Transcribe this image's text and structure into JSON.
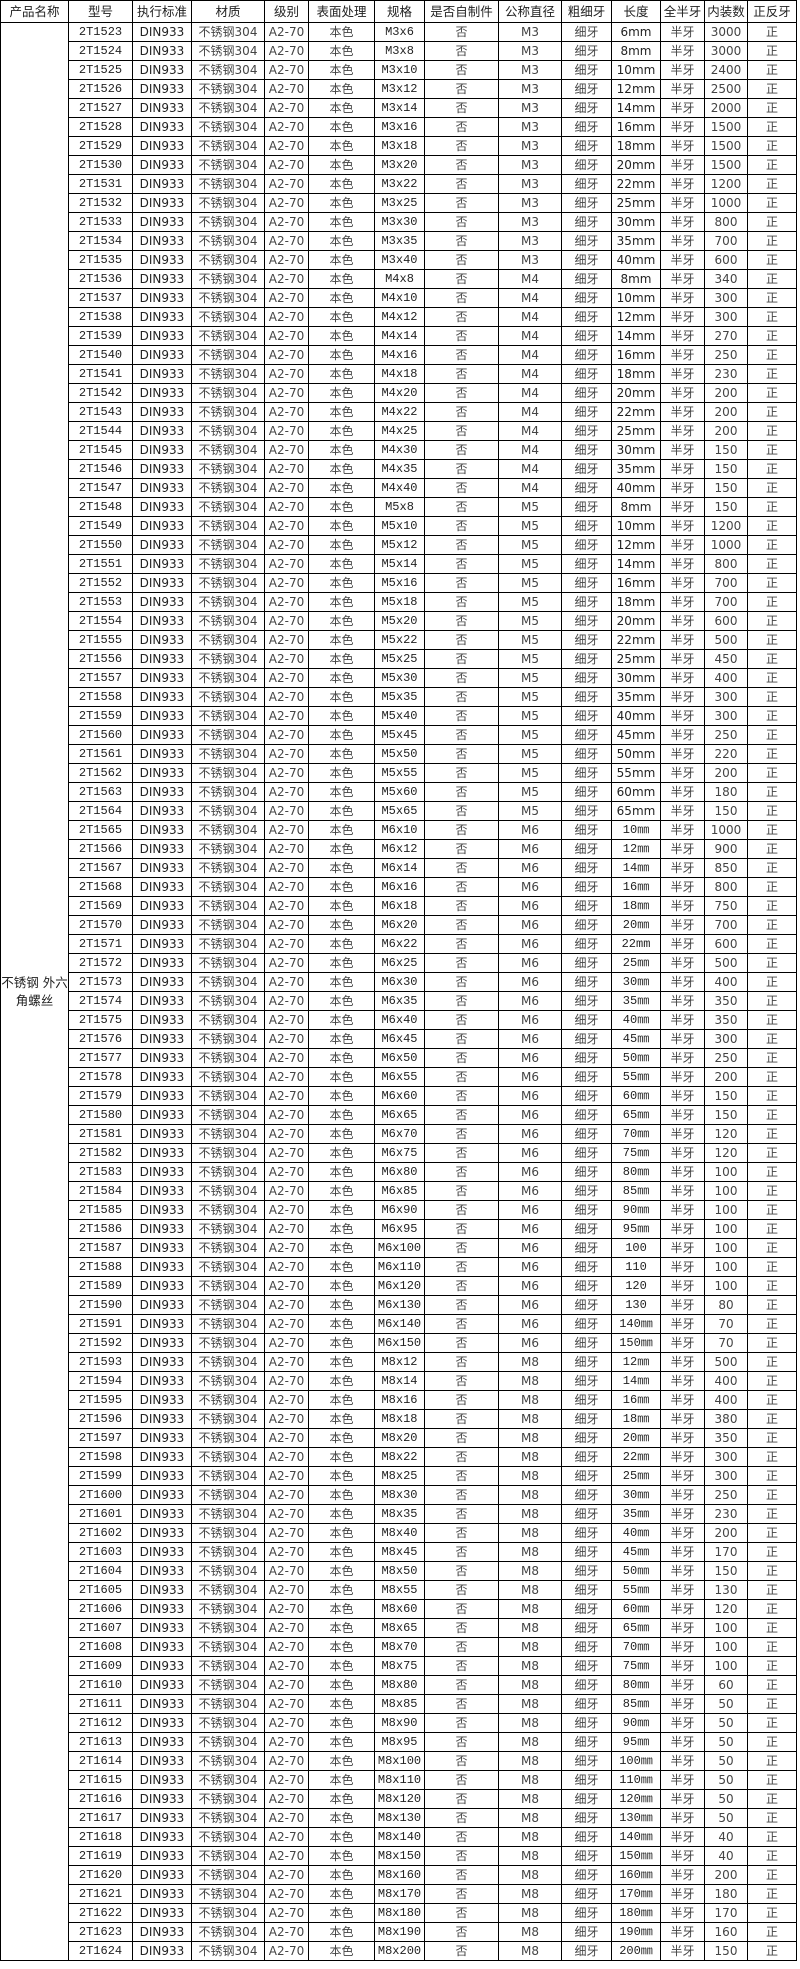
{
  "headers": [
    "产品名称",
    "型号",
    "执行标准",
    "材质",
    "级别",
    "表面处理",
    "规格",
    "是否自制件",
    "公称直径",
    "粗细牙",
    "长度",
    "全半牙",
    "内装数",
    "正反牙"
  ],
  "product_name": "不锈钢 外六角螺丝",
  "common": {
    "standard": "DIN933",
    "material": "不锈钢304",
    "grade": "A2-70",
    "surface": "本色",
    "self_made": "否",
    "thread": "细牙",
    "full_half": "半牙",
    "direction": "正"
  },
  "rows": [
    [
      "2T1523",
      "M3x6",
      "M3",
      "6mm",
      "3000"
    ],
    [
      "2T1524",
      "M3x8",
      "M3",
      "8mm",
      "3000"
    ],
    [
      "2T1525",
      "M3x10",
      "M3",
      "10mm",
      "2400"
    ],
    [
      "2T1526",
      "M3x12",
      "M3",
      "12mm",
      "2500"
    ],
    [
      "2T1527",
      "M3x14",
      "M3",
      "14mm",
      "2000"
    ],
    [
      "2T1528",
      "M3x16",
      "M3",
      "16mm",
      "1500"
    ],
    [
      "2T1529",
      "M3x18",
      "M3",
      "18mm",
      "1500"
    ],
    [
      "2T1530",
      "M3x20",
      "M3",
      "20mm",
      "1500"
    ],
    [
      "2T1531",
      "M3x22",
      "M3",
      "22mm",
      "1200"
    ],
    [
      "2T1532",
      "M3x25",
      "M3",
      "25mm",
      "1000"
    ],
    [
      "2T1533",
      "M3x30",
      "M3",
      "30mm",
      "800"
    ],
    [
      "2T1534",
      "M3x35",
      "M3",
      "35mm",
      "700"
    ],
    [
      "2T1535",
      "M3x40",
      "M3",
      "40mm",
      "600"
    ],
    [
      "2T1536",
      "M4x8",
      "M4",
      "8mm",
      "340"
    ],
    [
      "2T1537",
      "M4x10",
      "M4",
      "10mm",
      "300"
    ],
    [
      "2T1538",
      "M4x12",
      "M4",
      "12mm",
      "300"
    ],
    [
      "2T1539",
      "M4x14",
      "M4",
      "14mm",
      "270"
    ],
    [
      "2T1540",
      "M4x16",
      "M4",
      "16mm",
      "250"
    ],
    [
      "2T1541",
      "M4x18",
      "M4",
      "18mm",
      "230"
    ],
    [
      "2T1542",
      "M4x20",
      "M4",
      "20mm",
      "200"
    ],
    [
      "2T1543",
      "M4x22",
      "M4",
      "22mm",
      "200"
    ],
    [
      "2T1544",
      "M4x25",
      "M4",
      "25mm",
      "200"
    ],
    [
      "2T1545",
      "M4x30",
      "M4",
      "30mm",
      "150"
    ],
    [
      "2T1546",
      "M4x35",
      "M4",
      "35mm",
      "150"
    ],
    [
      "2T1547",
      "M4x40",
      "M4",
      "40mm",
      "150"
    ],
    [
      "2T1548",
      "M5x8",
      "M5",
      "8mm",
      "150"
    ],
    [
      "2T1549",
      "M5x10",
      "M5",
      "10mm",
      "1200"
    ],
    [
      "2T1550",
      "M5x12",
      "M5",
      "12mm",
      "1000"
    ],
    [
      "2T1551",
      "M5x14",
      "M5",
      "14mm",
      "800"
    ],
    [
      "2T1552",
      "M5x16",
      "M5",
      "16mm",
      "700"
    ],
    [
      "2T1553",
      "M5x18",
      "M5",
      "18mm",
      "700"
    ],
    [
      "2T1554",
      "M5x20",
      "M5",
      "20mm",
      "600"
    ],
    [
      "2T1555",
      "M5x22",
      "M5",
      "22mm",
      "500"
    ],
    [
      "2T1556",
      "M5x25",
      "M5",
      "25mm",
      "450"
    ],
    [
      "2T1557",
      "M5x30",
      "M5",
      "30mm",
      "400"
    ],
    [
      "2T1558",
      "M5x35",
      "M5",
      "35mm",
      "300"
    ],
    [
      "2T1559",
      "M5x40",
      "M5",
      "40mm",
      "300"
    ],
    [
      "2T1560",
      "M5x45",
      "M5",
      "45mm",
      "250"
    ],
    [
      "2T1561",
      "M5x50",
      "M5",
      "50mm",
      "220"
    ],
    [
      "2T1562",
      "M5x55",
      "M5",
      "55mm",
      "200"
    ],
    [
      "2T1563",
      "M5x60",
      "M5",
      "60mm",
      "180"
    ],
    [
      "2T1564",
      "M5x65",
      "M5",
      "65mm",
      "150"
    ],
    [
      "2T1565",
      "M6x10",
      "M6",
      "10㎜",
      "1000"
    ],
    [
      "2T1566",
      "M6x12",
      "M6",
      "12㎜",
      "900"
    ],
    [
      "2T1567",
      "M6x14",
      "M6",
      "14㎜",
      "850"
    ],
    [
      "2T1568",
      "M6x16",
      "M6",
      "16㎜",
      "800"
    ],
    [
      "2T1569",
      "M6x18",
      "M6",
      "18㎜",
      "750"
    ],
    [
      "2T1570",
      "M6x20",
      "M6",
      "20㎜",
      "700"
    ],
    [
      "2T1571",
      "M6x22",
      "M6",
      "22mm",
      "600"
    ],
    [
      "2T1572",
      "M6x25",
      "M6",
      "25㎜",
      "500"
    ],
    [
      "2T1573",
      "M6x30",
      "M6",
      "30㎜",
      "400"
    ],
    [
      "2T1574",
      "M6x35",
      "M6",
      "35㎜",
      "350"
    ],
    [
      "2T1575",
      "M6x40",
      "M6",
      "40㎜",
      "350"
    ],
    [
      "2T1576",
      "M6x45",
      "M6",
      "45㎜",
      "300"
    ],
    [
      "2T1577",
      "M6x50",
      "M6",
      "50㎜",
      "250"
    ],
    [
      "2T1578",
      "M6x55",
      "M6",
      "55㎜",
      "200"
    ],
    [
      "2T1579",
      "M6x60",
      "M6",
      "60㎜",
      "150"
    ],
    [
      "2T1580",
      "M6x65",
      "M6",
      "65㎜",
      "150"
    ],
    [
      "2T1581",
      "M6x70",
      "M6",
      "70㎜",
      "120"
    ],
    [
      "2T1582",
      "M6x75",
      "M6",
      "75㎜",
      "120"
    ],
    [
      "2T1583",
      "M6x80",
      "M6",
      "80㎜",
      "100"
    ],
    [
      "2T1584",
      "M6x85",
      "M6",
      "85㎜",
      "100"
    ],
    [
      "2T1585",
      "M6x90",
      "M6",
      "90㎜",
      "100"
    ],
    [
      "2T1586",
      "M6x95",
      "M6",
      "95㎜",
      "100"
    ],
    [
      "2T1587",
      "M6x100",
      "M6",
      "100",
      "100"
    ],
    [
      "2T1588",
      "M6x110",
      "M6",
      "110",
      "100"
    ],
    [
      "2T1589",
      "M6x120",
      "M6",
      "120",
      "100"
    ],
    [
      "2T1590",
      "M6x130",
      "M6",
      "130",
      "80"
    ],
    [
      "2T1591",
      "M6x140",
      "M6",
      "140㎜",
      "70"
    ],
    [
      "2T1592",
      "M6x150",
      "M6",
      "150㎜",
      "70"
    ],
    [
      "2T1593",
      "M8x12",
      "M8",
      "12㎜",
      "500"
    ],
    [
      "2T1594",
      "M8x14",
      "M8",
      "14㎜",
      "400"
    ],
    [
      "2T1595",
      "M8x16",
      "M8",
      "16㎜",
      "400"
    ],
    [
      "2T1596",
      "M8x18",
      "M8",
      "18㎜",
      "380"
    ],
    [
      "2T1597",
      "M8x20",
      "M8",
      "20㎜",
      "350"
    ],
    [
      "2T1598",
      "M8x22",
      "M8",
      "22㎜",
      "300"
    ],
    [
      "2T1599",
      "M8x25",
      "M8",
      "25㎜",
      "300"
    ],
    [
      "2T1600",
      "M8x30",
      "M8",
      "30㎜",
      "250"
    ],
    [
      "2T1601",
      "M8x35",
      "M8",
      "35㎜",
      "230"
    ],
    [
      "2T1602",
      "M8x40",
      "M8",
      "40㎜",
      "200"
    ],
    [
      "2T1603",
      "M8x45",
      "M8",
      "45㎜",
      "170"
    ],
    [
      "2T1604",
      "M8x50",
      "M8",
      "50㎜",
      "150"
    ],
    [
      "2T1605",
      "M8x55",
      "M8",
      "55㎜",
      "130"
    ],
    [
      "2T1606",
      "M8x60",
      "M8",
      "60㎜",
      "120"
    ],
    [
      "2T1607",
      "M8x65",
      "M8",
      "65㎜",
      "100"
    ],
    [
      "2T1608",
      "M8x70",
      "M8",
      "70㎜",
      "100"
    ],
    [
      "2T1609",
      "M8x75",
      "M8",
      "75㎜",
      "100"
    ],
    [
      "2T1610",
      "M8x80",
      "M8",
      "80㎜",
      "60"
    ],
    [
      "2T1611",
      "M8x85",
      "M8",
      "85㎜",
      "50"
    ],
    [
      "2T1612",
      "M8x90",
      "M8",
      "90㎜",
      "50"
    ],
    [
      "2T1613",
      "M8x95",
      "M8",
      "95㎜",
      "50"
    ],
    [
      "2T1614",
      "M8x100",
      "M8",
      "100㎜",
      "50"
    ],
    [
      "2T1615",
      "M8x110",
      "M8",
      "110㎜",
      "50"
    ],
    [
      "2T1616",
      "M8x120",
      "M8",
      "120㎜",
      "50"
    ],
    [
      "2T1617",
      "M8x130",
      "M8",
      "130㎜",
      "50"
    ],
    [
      "2T1618",
      "M8x140",
      "M8",
      "140㎜",
      "40"
    ],
    [
      "2T1619",
      "M8x150",
      "M8",
      "150㎜",
      "40"
    ],
    [
      "2T1620",
      "M8x160",
      "M8",
      "160㎜",
      "200"
    ],
    [
      "2T1621",
      "M8x170",
      "M8",
      "170㎜",
      "180"
    ],
    [
      "2T1622",
      "M8x180",
      "M8",
      "180㎜",
      "170"
    ],
    [
      "2T1623",
      "M8x190",
      "M8",
      "190㎜",
      "160"
    ],
    [
      "2T1624",
      "M8x200",
      "M8",
      "200㎜",
      "150"
    ]
  ]
}
